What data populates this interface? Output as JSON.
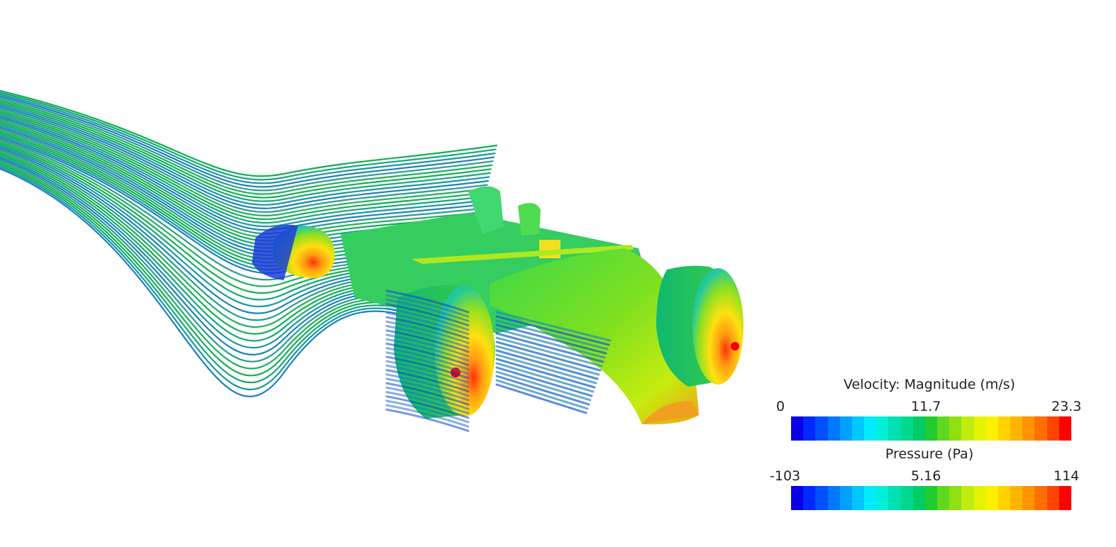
{
  "legends": [
    {
      "title": "Velocity: Magnitude (m/s)",
      "min": "0",
      "mid": "11.7",
      "max": "23.3"
    },
    {
      "title": "Pressure (Pa)",
      "min": "-103",
      "mid": "5.16",
      "max": "114"
    }
  ],
  "colormap": [
    "#0a00e6",
    "#0028ff",
    "#0050ff",
    "#0078ff",
    "#00a0ff",
    "#00c8ff",
    "#00ebff",
    "#00f0d8",
    "#00e0b0",
    "#00d890",
    "#00cc66",
    "#20cc30",
    "#60d820",
    "#90e010",
    "#c0ec10",
    "#e4f400",
    "#fff000",
    "#ffd200",
    "#ffb400",
    "#ff9400",
    "#ff7000",
    "#ff4400",
    "#ff0000"
  ]
}
